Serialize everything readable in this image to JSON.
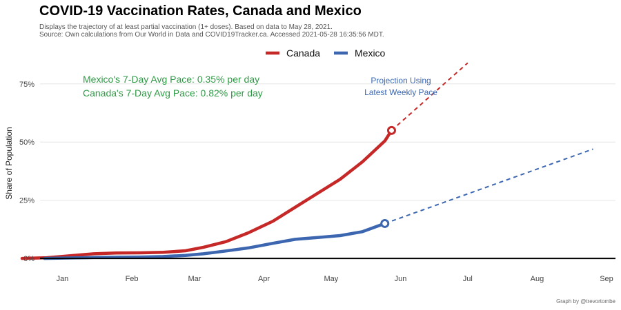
{
  "header": {
    "title": "COVID-19 Vaccination Rates, Canada and Mexico",
    "subtitle_line1": "Displays the trajectory of at least partial vaccination (1+ doses). Based on data to May 28, 2021.",
    "subtitle_line2": "Source: Own calculations from Our World in Data and COVID19Tracker.ca. Accessed 2021-05-28 16:35:56 MDT."
  },
  "caption": "Graph by @trevortombe",
  "colors": {
    "canada": "#c62828",
    "mexico": "#3c67b0",
    "annotation_green": "#2e9a45",
    "annotation_blue": "#3c67b0",
    "grid": "#e6e6e6",
    "zero_line": "#000000"
  },
  "chart_data": {
    "type": "line",
    "title": "COVID-19 Vaccination Rates, Canada and Mexico",
    "xlabel": "",
    "ylabel": "Share of Population",
    "x_ticks": [
      "Jan",
      "Feb",
      "Mar",
      "Apr",
      "May",
      "Jun",
      "Jul",
      "Aug",
      "Sep"
    ],
    "x_tick_dates": [
      "2021-01-01",
      "2021-02-01",
      "2021-03-01",
      "2021-04-01",
      "2021-05-01",
      "2021-06-01",
      "2021-07-01",
      "2021-08-01",
      "2021-09-01"
    ],
    "y_ticks": [
      "0%",
      "25%",
      "50%",
      "75%"
    ],
    "y_tick_values": [
      0,
      25,
      50,
      75
    ],
    "xlim": [
      "2020-12-22",
      "2021-09-05"
    ],
    "ylim": [
      -5,
      85
    ],
    "grid": "horizontal",
    "legend_position": "top",
    "series": [
      {
        "name": "Canada",
        "x": [
          "2020-12-14",
          "2020-12-25",
          "2021-01-05",
          "2021-01-15",
          "2021-01-25",
          "2021-02-05",
          "2021-02-15",
          "2021-02-25",
          "2021-03-05",
          "2021-03-15",
          "2021-03-25",
          "2021-04-05",
          "2021-04-15",
          "2021-04-25",
          "2021-05-05",
          "2021-05-15",
          "2021-05-25",
          "2021-05-28"
        ],
        "values": [
          0,
          0.3,
          1.2,
          2.0,
          2.3,
          2.4,
          2.6,
          3.3,
          4.8,
          7.2,
          11.0,
          16.0,
          22.0,
          28.0,
          34.0,
          41.5,
          50.5,
          55.0
        ]
      },
      {
        "name": "Mexico",
        "x": [
          "2020-12-24",
          "2021-01-05",
          "2021-01-15",
          "2021-01-25",
          "2021-02-05",
          "2021-02-15",
          "2021-02-25",
          "2021-03-05",
          "2021-03-15",
          "2021-03-25",
          "2021-04-05",
          "2021-04-15",
          "2021-04-25",
          "2021-05-05",
          "2021-05-15",
          "2021-05-25"
        ],
        "values": [
          0,
          0.2,
          0.4,
          0.5,
          0.6,
          0.8,
          1.3,
          2.0,
          3.2,
          4.5,
          6.5,
          8.2,
          9.0,
          9.8,
          11.5,
          15.0
        ]
      }
    ],
    "projections": [
      {
        "name": "Canada",
        "x": [
          "2021-05-28",
          "2021-07-01"
        ],
        "values": [
          55.0,
          84.0
        ]
      },
      {
        "name": "Mexico",
        "x": [
          "2021-05-25",
          "2021-08-26"
        ],
        "values": [
          15.0,
          47.0
        ]
      }
    ],
    "annotations": {
      "mexico_pace": "Mexico's 7-Day Avg Pace: 0.35% per day",
      "canada_pace": "Canada's 7-Day Avg Pace: 0.82% per day",
      "projection_line1": "Projection Using",
      "projection_line2": "Latest Weekly Pace"
    }
  }
}
